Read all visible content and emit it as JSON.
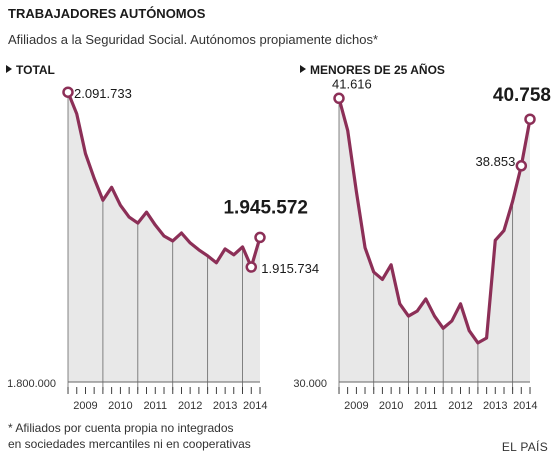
{
  "header": {
    "title": "TRABAJADORES AUTÓNOMOS",
    "subtitle": "Afiliados a la Seguridad Social. Autónomos propiamente dichos*"
  },
  "footnote": {
    "line1": "* Afiliados por cuenta propia no integrados",
    "line2": "en sociedades mercantiles ni en cooperativas"
  },
  "credit": "EL PAÍS",
  "colors": {
    "line": "#8c2f57",
    "area": "#e8e8e8",
    "grid": "#666666"
  },
  "tick_label": "I",
  "chart_data": [
    {
      "type": "area",
      "title": "TOTAL",
      "y_baseline_label": "1.800.000",
      "ylim": [
        1800000,
        2100000
      ],
      "year_labels": [
        "2009",
        "2010",
        "2011",
        "2012",
        "2013",
        "2014"
      ],
      "values": [
        2091733,
        2070000,
        2030000,
        2005000,
        1983000,
        1996000,
        1978000,
        1966000,
        1960000,
        1971000,
        1958000,
        1947000,
        1942000,
        1950000,
        1940000,
        1933000,
        1927000,
        1920000,
        1934000,
        1928000,
        1936000,
        1915734,
        1945572
      ],
      "annotations": [
        {
          "label": "2.091.733",
          "value": 2091733,
          "bold": false
        },
        {
          "label": "1.915.734",
          "value": 1915734,
          "bold": false
        },
        {
          "label": "1.945.572",
          "value": 1945572,
          "bold": true
        }
      ]
    },
    {
      "type": "area",
      "title": "MENORES DE 25 AÑOS",
      "y_baseline_label": "30.000",
      "ylim": [
        30000,
        42200
      ],
      "year_labels": [
        "2009",
        "2010",
        "2011",
        "2012",
        "2013",
        "2014"
      ],
      "values": [
        41616,
        40300,
        37800,
        35500,
        34500,
        34200,
        34800,
        33200,
        32700,
        32900,
        33400,
        32700,
        32200,
        32500,
        33200,
        32100,
        31600,
        31800,
        35800,
        36200,
        37400,
        38853,
        40758
      ],
      "annotations": [
        {
          "label": "41.616",
          "value": 41616,
          "bold": false
        },
        {
          "label": "38.853",
          "value": 38853,
          "bold": false
        },
        {
          "label": "40.758",
          "value": 40758,
          "bold": true
        }
      ]
    }
  ]
}
